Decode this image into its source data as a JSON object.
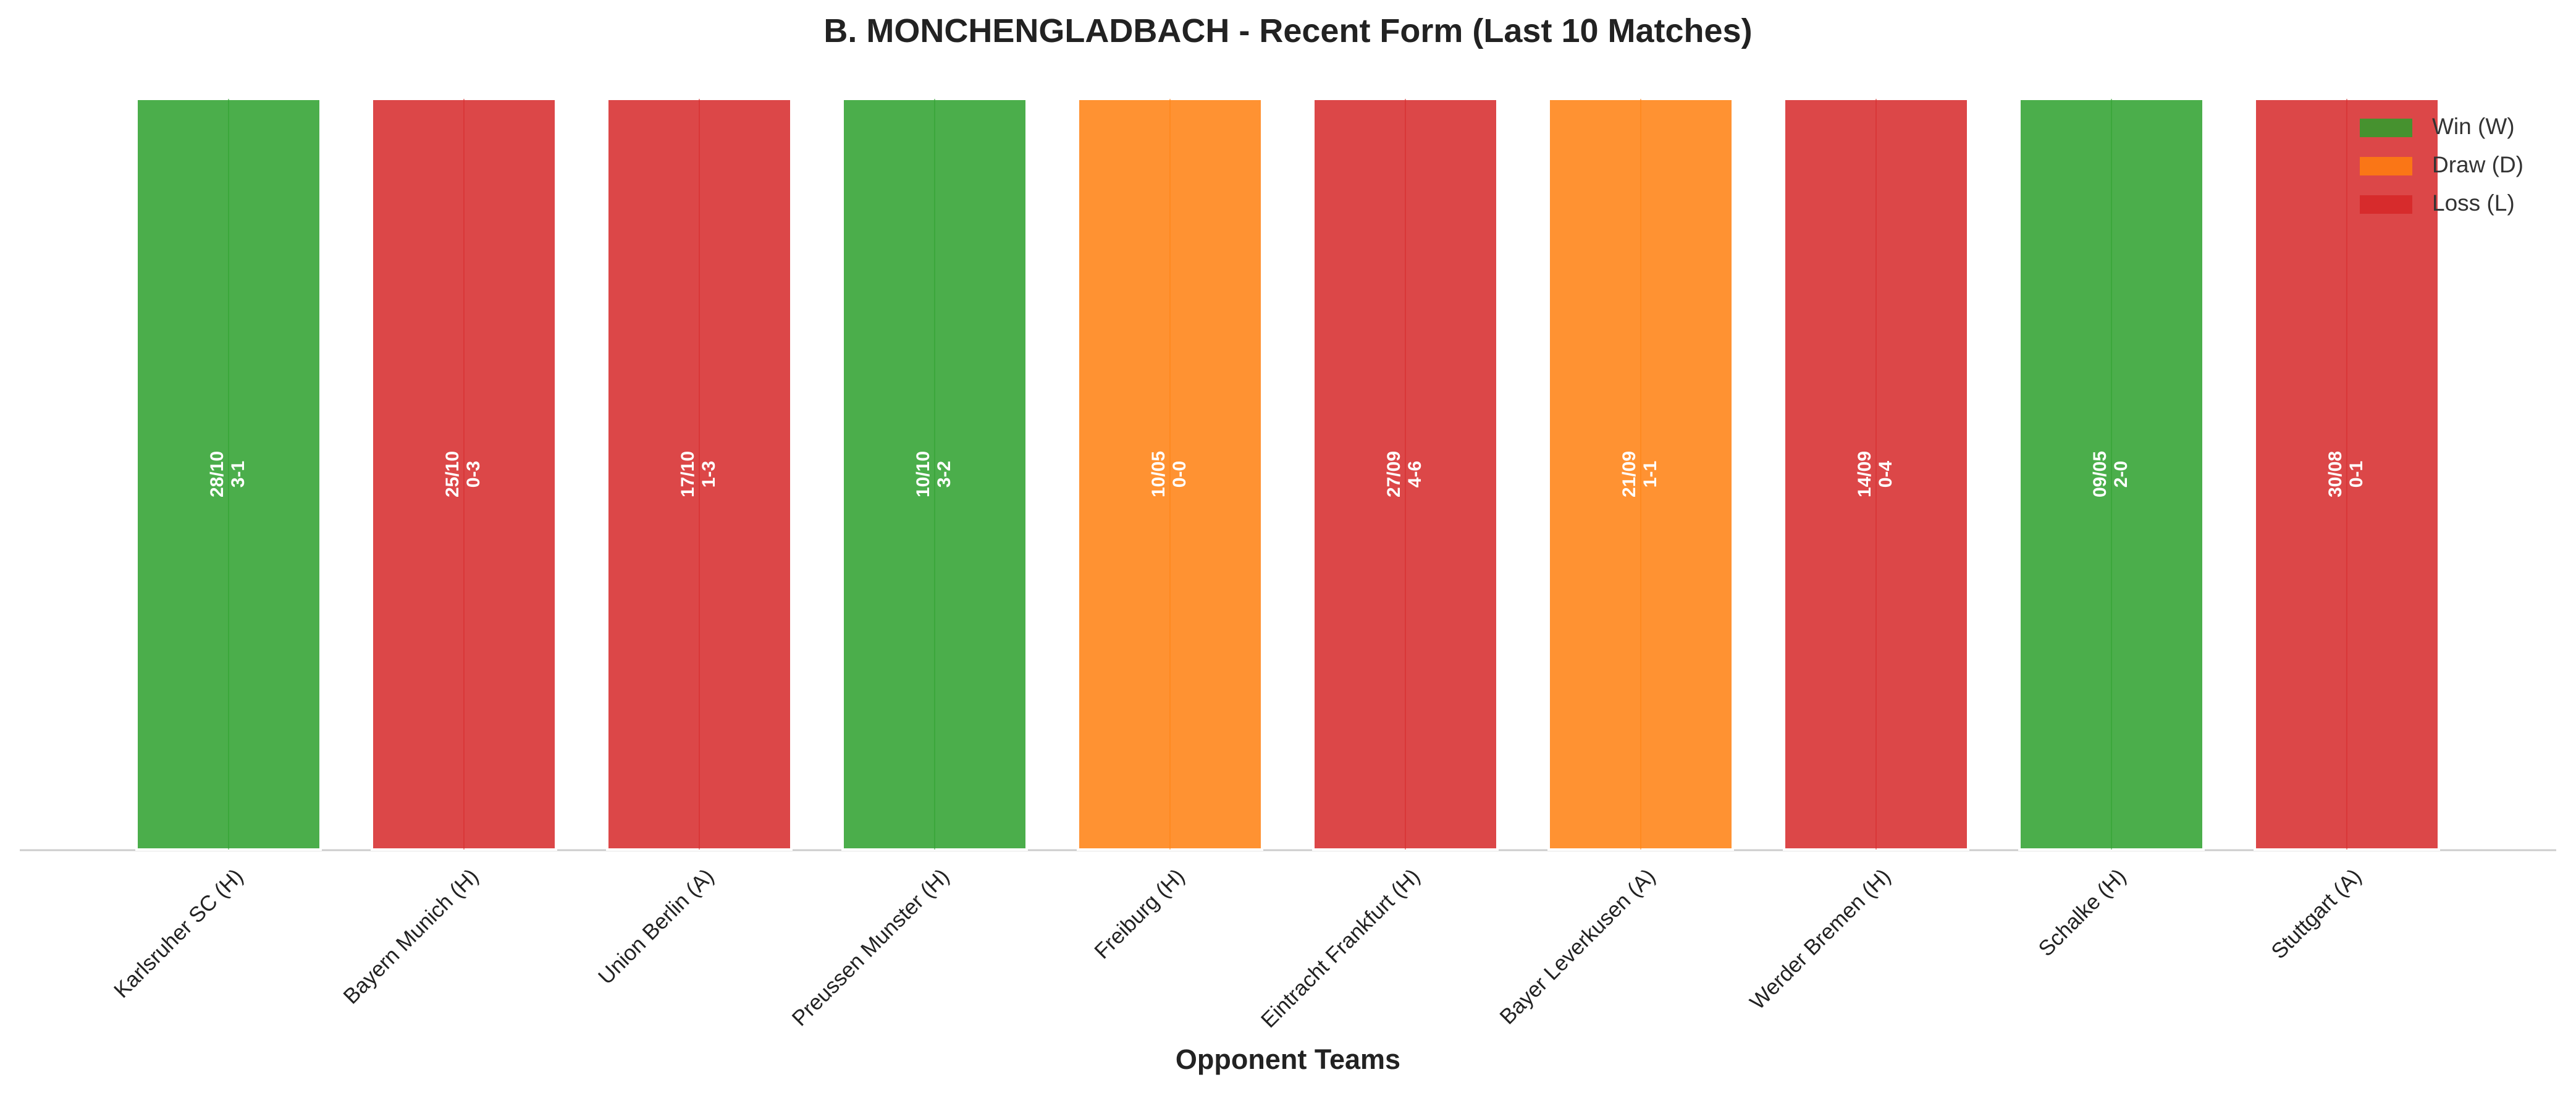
{
  "chart_data": {
    "type": "bar",
    "title": "B. MONCHENGLADBACH - Recent Form (Last 10 Matches)",
    "xlabel": "Opponent Teams",
    "categories": [
      "Karlsruher SC (H)",
      "Bayern Munich (H)",
      "Union Berlin (A)",
      "Preussen Munster (H)",
      "Freiburg (H)",
      "Eintracht Frankfurt (H)",
      "Bayer Leverkusen (A)",
      "Werder Bremen (H)",
      "Schalke (H)",
      "Stuttgart (A)"
    ],
    "values": [
      1,
      1,
      1,
      1,
      1,
      1,
      1,
      1,
      1,
      1
    ],
    "results": [
      "W",
      "L",
      "L",
      "W",
      "D",
      "L",
      "D",
      "L",
      "W",
      "L"
    ],
    "dates": [
      "28/10",
      "25/10",
      "17/10",
      "10/10",
      "10/05",
      "27/09",
      "21/09",
      "14/09",
      "09/05",
      "30/08"
    ],
    "scores": [
      "3-1",
      "0-3",
      "1-3",
      "3-2",
      "0-0",
      "4-6",
      "1-1",
      "0-4",
      "2-0",
      "0-1"
    ],
    "ylim": [
      0,
      1
    ],
    "legend_position": "upper right",
    "legend": [
      {
        "result": "W",
        "name": "Win (W)",
        "color": "#2ca02c"
      },
      {
        "result": "D",
        "name": "Draw (D)",
        "color": "#ff7f0e"
      },
      {
        "result": "L",
        "name": "Loss (L)",
        "color": "#d62728"
      }
    ]
  }
}
